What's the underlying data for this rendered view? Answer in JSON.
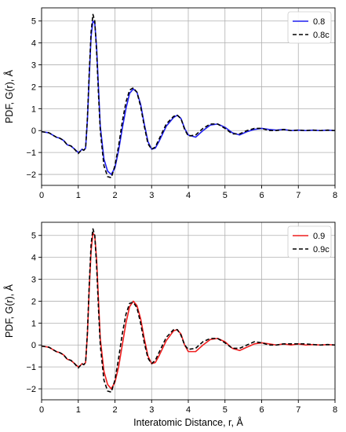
{
  "chart_data": [
    {
      "type": "line",
      "xlabel": "",
      "ylabel": "PDF, G(r), Å",
      "xlim": [
        0,
        8
      ],
      "ylim": [
        -2.5,
        5.6
      ],
      "xticks": [
        "0",
        "1",
        "2",
        "3",
        "4",
        "5",
        "6",
        "7",
        "8"
      ],
      "yticks": [
        "-2",
        "-1",
        "0",
        "1",
        "2",
        "3",
        "4",
        "5"
      ],
      "grid": true,
      "legend": "top-right",
      "series": [
        {
          "name": "0.8",
          "color": "#1f1fef",
          "style": "solid",
          "x": [
            0,
            0.2,
            0.3,
            0.4,
            0.5,
            0.6,
            0.7,
            0.8,
            0.9,
            1.0,
            1.05,
            1.1,
            1.15,
            1.2,
            1.25,
            1.3,
            1.35,
            1.4,
            1.45,
            1.5,
            1.55,
            1.6,
            1.7,
            1.8,
            1.9,
            2.0,
            2.1,
            2.2,
            2.3,
            2.4,
            2.5,
            2.6,
            2.7,
            2.8,
            2.9,
            3.0,
            3.1,
            3.2,
            3.4,
            3.6,
            3.7,
            3.8,
            3.9,
            4.0,
            4.2,
            4.4,
            4.6,
            4.8,
            5.0,
            5.2,
            5.4,
            5.6,
            5.8,
            6.0,
            6.2,
            6.4,
            6.6,
            6.8,
            7.0,
            7.2,
            7.4,
            7.6,
            7.8,
            8.0
          ],
          "y": [
            -0.05,
            -0.1,
            -0.2,
            -0.3,
            -0.35,
            -0.45,
            -0.65,
            -0.7,
            -0.85,
            -1.0,
            -0.95,
            -0.85,
            -0.9,
            -0.8,
            0.5,
            2.5,
            4.3,
            5.0,
            4.9,
            3.8,
            2.0,
            0.2,
            -1.3,
            -1.85,
            -2.0,
            -1.7,
            -0.9,
            0.1,
            1.0,
            1.7,
            1.9,
            1.75,
            1.2,
            0.3,
            -0.5,
            -0.85,
            -0.8,
            -0.5,
            0.2,
            0.6,
            0.7,
            0.55,
            0.1,
            -0.2,
            -0.3,
            0.0,
            0.25,
            0.3,
            0.15,
            -0.1,
            -0.2,
            -0.05,
            0.05,
            0.1,
            0.05,
            0.02,
            0.05,
            0.0,
            0.02,
            0.0,
            0.02,
            0.0,
            0.02,
            0.0
          ]
        },
        {
          "name": "0.8c",
          "color": "#000000",
          "style": "dashed",
          "x": [
            0,
            0.2,
            0.3,
            0.4,
            0.5,
            0.6,
            0.7,
            0.8,
            0.9,
            1.0,
            1.05,
            1.1,
            1.15,
            1.2,
            1.25,
            1.3,
            1.35,
            1.4,
            1.45,
            1.5,
            1.55,
            1.6,
            1.7,
            1.8,
            1.9,
            2.0,
            2.1,
            2.2,
            2.3,
            2.4,
            2.5,
            2.6,
            2.7,
            2.8,
            2.9,
            3.0,
            3.1,
            3.2,
            3.4,
            3.6,
            3.7,
            3.8,
            3.9,
            4.0,
            4.2,
            4.4,
            4.6,
            4.8,
            5.0,
            5.2,
            5.4,
            5.6,
            5.8,
            6.0,
            6.2,
            6.4,
            6.6,
            6.8,
            7.0,
            7.2,
            7.4,
            7.6,
            7.8,
            8.0
          ],
          "y": [
            -0.05,
            -0.1,
            -0.2,
            -0.3,
            -0.35,
            -0.45,
            -0.65,
            -0.7,
            -0.85,
            -1.05,
            -0.95,
            -0.85,
            -0.9,
            -0.8,
            0.6,
            2.7,
            4.5,
            5.3,
            5.0,
            3.6,
            1.7,
            0.0,
            -1.6,
            -2.1,
            -2.15,
            -1.6,
            -0.7,
            0.4,
            1.3,
            1.85,
            1.95,
            1.75,
            1.1,
            0.2,
            -0.6,
            -0.85,
            -0.75,
            -0.4,
            0.3,
            0.65,
            0.7,
            0.55,
            0.05,
            -0.25,
            -0.2,
            0.1,
            0.3,
            0.3,
            0.1,
            -0.15,
            -0.15,
            0.0,
            0.1,
            0.1,
            0.0,
            0.0,
            0.05,
            0.0,
            0.02,
            0.0,
            0.02,
            0.0,
            0.02,
            0.0
          ]
        }
      ]
    },
    {
      "type": "line",
      "xlabel": "Interatomic Distance, r, Å",
      "ylabel": "PDF, G(r), Å",
      "xlim": [
        0,
        8
      ],
      "ylim": [
        -2.5,
        5.6
      ],
      "xticks": [
        "0",
        "1",
        "2",
        "3",
        "4",
        "5",
        "6",
        "7",
        "8"
      ],
      "yticks": [
        "-2",
        "-1",
        "0",
        "1",
        "2",
        "3",
        "4",
        "5"
      ],
      "grid": true,
      "legend": "top-right",
      "series": [
        {
          "name": "0.9",
          "color": "#ef1f1f",
          "style": "solid",
          "x": [
            0,
            0.2,
            0.3,
            0.4,
            0.5,
            0.6,
            0.7,
            0.8,
            0.9,
            1.0,
            1.05,
            1.1,
            1.15,
            1.2,
            1.25,
            1.3,
            1.35,
            1.4,
            1.45,
            1.5,
            1.55,
            1.6,
            1.7,
            1.8,
            1.9,
            2.0,
            2.1,
            2.2,
            2.3,
            2.4,
            2.5,
            2.6,
            2.7,
            2.8,
            2.9,
            3.0,
            3.1,
            3.2,
            3.4,
            3.6,
            3.7,
            3.8,
            3.9,
            4.0,
            4.2,
            4.4,
            4.6,
            4.8,
            5.0,
            5.2,
            5.4,
            5.6,
            5.8,
            6.0,
            6.2,
            6.4,
            6.6,
            6.8,
            7.0,
            7.2,
            7.4,
            7.6,
            7.8,
            8.0
          ],
          "y": [
            -0.05,
            -0.1,
            -0.2,
            -0.3,
            -0.35,
            -0.45,
            -0.65,
            -0.7,
            -0.85,
            -1.0,
            -0.95,
            -0.85,
            -0.9,
            -0.8,
            0.5,
            2.6,
            4.3,
            5.1,
            5.0,
            3.9,
            2.1,
            0.3,
            -1.2,
            -1.8,
            -2.0,
            -1.7,
            -1.0,
            0.0,
            1.0,
            1.75,
            2.0,
            1.8,
            1.2,
            0.3,
            -0.5,
            -0.85,
            -0.8,
            -0.5,
            0.2,
            0.65,
            0.7,
            0.5,
            0.0,
            -0.3,
            -0.3,
            0.0,
            0.25,
            0.3,
            0.15,
            -0.15,
            -0.25,
            -0.1,
            0.05,
            0.1,
            0.05,
            0.0,
            0.05,
            0.0,
            0.05,
            0.0,
            0.02,
            0.0,
            0.02,
            0.0
          ]
        },
        {
          "name": "0.9c",
          "color": "#000000",
          "style": "dashed",
          "x": [
            0,
            0.2,
            0.3,
            0.4,
            0.5,
            0.6,
            0.7,
            0.8,
            0.9,
            1.0,
            1.05,
            1.1,
            1.15,
            1.2,
            1.25,
            1.3,
            1.35,
            1.4,
            1.45,
            1.5,
            1.55,
            1.6,
            1.7,
            1.8,
            1.9,
            2.0,
            2.1,
            2.2,
            2.3,
            2.4,
            2.5,
            2.6,
            2.7,
            2.8,
            2.9,
            3.0,
            3.1,
            3.2,
            3.4,
            3.6,
            3.7,
            3.8,
            3.9,
            4.0,
            4.2,
            4.4,
            4.6,
            4.8,
            5.0,
            5.2,
            5.4,
            5.6,
            5.8,
            6.0,
            6.2,
            6.4,
            6.6,
            6.8,
            7.0,
            7.2,
            7.4,
            7.6,
            7.8,
            8.0
          ],
          "y": [
            -0.05,
            -0.1,
            -0.2,
            -0.3,
            -0.35,
            -0.45,
            -0.65,
            -0.7,
            -0.85,
            -1.05,
            -0.95,
            -0.85,
            -0.9,
            -0.8,
            0.6,
            2.8,
            4.6,
            5.3,
            5.0,
            3.6,
            1.7,
            0.0,
            -1.6,
            -2.1,
            -2.15,
            -1.6,
            -0.6,
            0.5,
            1.4,
            1.9,
            1.95,
            1.7,
            1.0,
            0.1,
            -0.6,
            -0.85,
            -0.7,
            -0.35,
            0.35,
            0.7,
            0.7,
            0.45,
            0.0,
            -0.2,
            -0.15,
            0.15,
            0.3,
            0.3,
            0.1,
            -0.15,
            -0.15,
            0.0,
            0.15,
            0.1,
            0.0,
            0.0,
            0.05,
            0.05,
            0.05,
            0.05,
            0.02,
            0.0,
            0.02,
            0.0
          ]
        }
      ]
    }
  ]
}
